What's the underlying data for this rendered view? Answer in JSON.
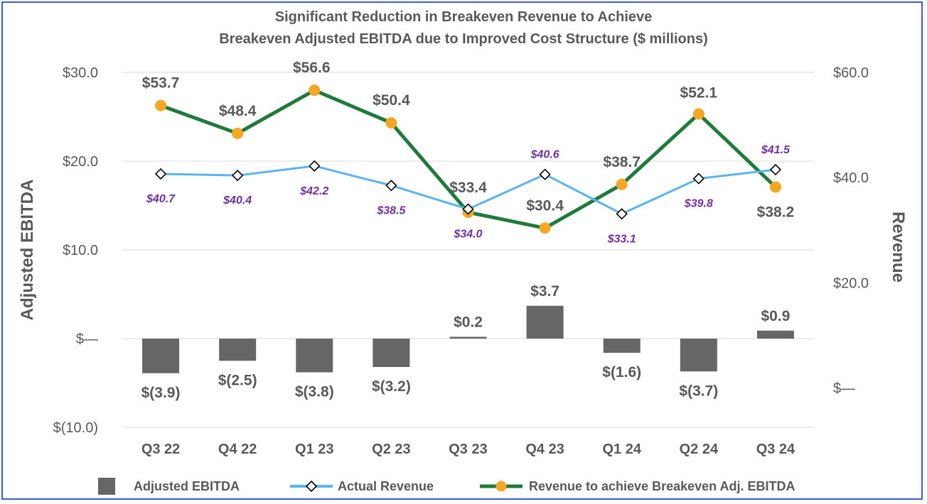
{
  "chart_data": {
    "type": "bar",
    "title": [
      "Significant Reduction in Breakeven Revenue to Achieve",
      "Breakeven Adjusted EBITDA due to Improved Cost Structure ($ millions)"
    ],
    "categories": [
      "Q3 22",
      "Q4 22",
      "Q1 23",
      "Q2 23",
      "Q3 23",
      "Q4 23",
      "Q1 24",
      "Q2 24",
      "Q3 24"
    ],
    "ylabel": "Adjusted EBITDA",
    "y2label": "Revenue",
    "ylim": [
      -10,
      30
    ],
    "y2lim": [
      -7.5,
      60
    ],
    "yticks": [
      {
        "value": 30,
        "label": "$30.0"
      },
      {
        "value": 20,
        "label": "$20.0"
      },
      {
        "value": 10,
        "label": "$10.0"
      },
      {
        "value": 0,
        "label": "$—"
      },
      {
        "value": -10,
        "label": "$(10.0)"
      }
    ],
    "y2ticks": [
      {
        "value": 60,
        "label": "$60.0"
      },
      {
        "value": 40,
        "label": "$40.0"
      },
      {
        "value": 20,
        "label": "$20.0"
      },
      {
        "value": 0,
        "label": "$—"
      }
    ],
    "series": [
      {
        "name": "Adjusted EBITDA",
        "type": "bar",
        "axis": "left",
        "color": "#666666",
        "values": [
          -3.9,
          -2.5,
          -3.8,
          -3.2,
          0.2,
          3.7,
          -1.6,
          -3.7,
          0.9
        ],
        "labels": [
          "$(3.9)",
          "$(2.5)",
          "$(3.8)",
          "$(3.2)",
          "$0.2",
          "$3.7",
          "$(1.6)",
          "$(3.7)",
          "$0.9"
        ]
      },
      {
        "name": "Actual Revenue",
        "type": "line",
        "axis": "right",
        "color": "#5ab4ee",
        "values": [
          40.7,
          40.4,
          42.2,
          38.5,
          34.0,
          40.6,
          33.1,
          39.8,
          41.5
        ],
        "labels": [
          "$40.7",
          "$40.4",
          "$42.2",
          "$38.5",
          "$34.0",
          "$40.6",
          "$33.1",
          "$39.8",
          "$41.5"
        ]
      },
      {
        "name": "Revenue to achieve Breakeven Adj. EBITDA",
        "type": "line",
        "axis": "right",
        "color": "#1e7b3a",
        "marker_color": "#f5a623",
        "values": [
          53.7,
          48.4,
          56.6,
          50.4,
          33.4,
          30.4,
          38.7,
          52.1,
          38.2
        ],
        "labels": [
          "$53.7",
          "$48.4",
          "$56.6",
          "$50.4",
          "$33.4",
          "$30.4",
          "$38.7",
          "$52.1",
          "$38.2"
        ]
      }
    ]
  }
}
